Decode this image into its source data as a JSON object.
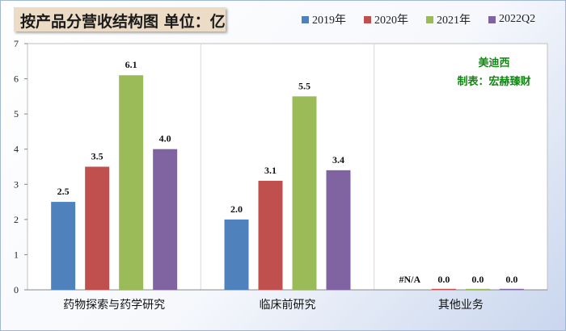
{
  "title": "按产品分营收结构图 单位：亿",
  "annotation": {
    "line1": "美迪西",
    "line2": "制表：宏赫臻财"
  },
  "colors": {
    "annotation": "#118811",
    "grid": "#d9d9d9"
  },
  "chart_data": {
    "type": "bar",
    "title": "按产品分营收结构图 单位：亿",
    "categories": [
      "药物探索与药学研究",
      "临床前研究",
      "其他业务"
    ],
    "series": [
      {
        "name": "2019年",
        "color": "#4f81bd",
        "values": [
          2.5,
          2.0,
          null
        ],
        "labels": [
          "2.5",
          "2.0",
          "#N/A"
        ]
      },
      {
        "name": "2020年",
        "color": "#c0504d",
        "values": [
          3.5,
          3.1,
          0.0
        ],
        "labels": [
          "3.5",
          "3.1",
          "0.0"
        ]
      },
      {
        "name": "2021年",
        "color": "#9bbb59",
        "values": [
          6.1,
          5.5,
          0.0
        ],
        "labels": [
          "6.1",
          "5.5",
          "0.0"
        ]
      },
      {
        "name": "2022Q2",
        "color": "#8064a2",
        "values": [
          4.0,
          3.4,
          0.0
        ],
        "labels": [
          "4.0",
          "3.4",
          "0.0"
        ]
      }
    ],
    "ylim": [
      0,
      7
    ],
    "yticks": [
      "0",
      "1",
      "2",
      "3",
      "4",
      "5",
      "6",
      "7"
    ],
    "xlabel": "",
    "ylabel": "",
    "legend": "top-right",
    "grid": "vertical category separators"
  }
}
